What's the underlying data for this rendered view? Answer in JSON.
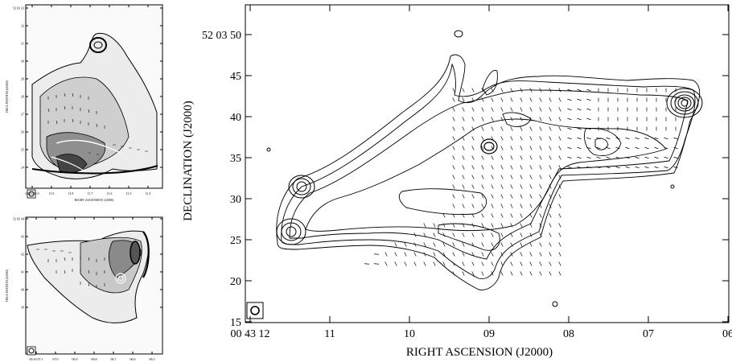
{
  "main_panel": {
    "y_ticks": [
      "52 03 50",
      "45",
      "40",
      "35",
      "30",
      "25",
      "20",
      "15"
    ],
    "x_ticks": [
      "00 43 12",
      "11",
      "10",
      "09",
      "08",
      "07",
      "06"
    ],
    "xlabel": "RIGHT ASCENSION (J2000)",
    "ylabel": "DECLINATION (J2000)"
  },
  "inset_top": {
    "y_ticks": [
      "52 03 33",
      "32",
      "31",
      "30",
      "29",
      "28",
      "27",
      "26",
      "25",
      "24"
    ],
    "x_ticks": [
      "00 43 12.0",
      "11.9",
      "11.8",
      "11.7",
      "11.6",
      "11.5",
      "11.4"
    ],
    "xlabel": "RIGHT ASCENSION (J2000)",
    "ylabel": "DECLINATION (J2000)"
  },
  "inset_bottom": {
    "y_ticks": [
      "52 03 44",
      "43",
      "42",
      "41",
      "40",
      "39"
    ],
    "x_ticks": [
      "00 43 07.1",
      "07.0",
      "06.9",
      "06.8",
      "06.7",
      "06.6",
      "06.5"
    ],
    "xlabel": "RIGHT ASCENSION (J2000)",
    "ylabel": "DECLINATION (J2000)"
  }
}
